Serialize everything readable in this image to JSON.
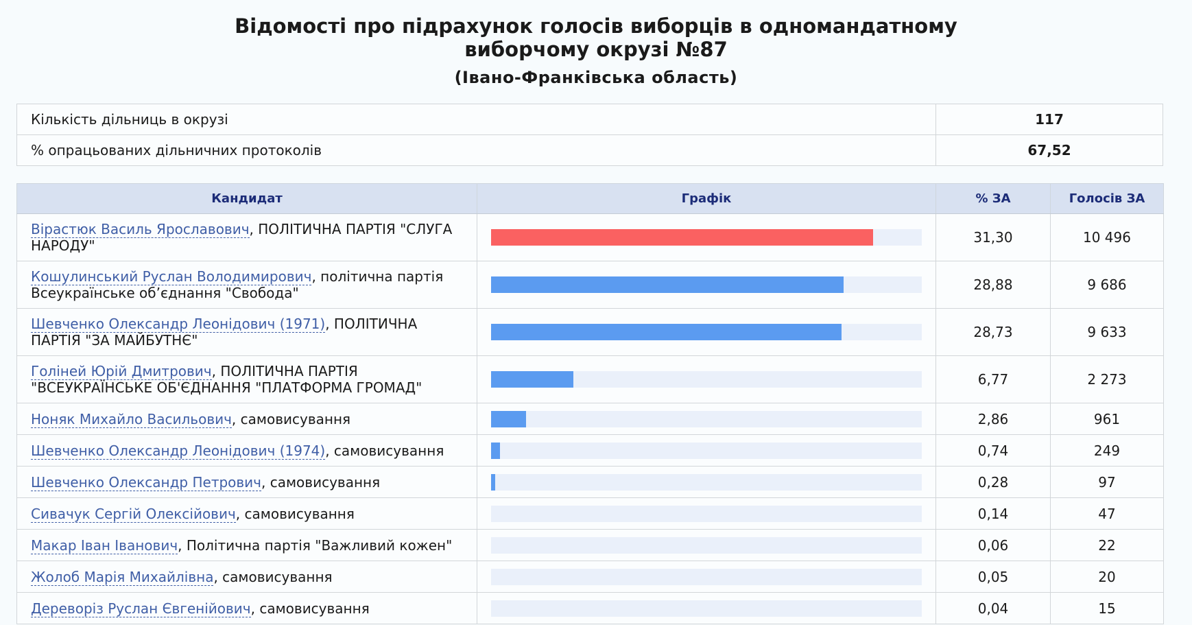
{
  "title": {
    "line1": "Відомості про підрахунок голосів виборців в одномандатному",
    "line2": "виборчому окрузі №87",
    "region": "(Івано-Франківська область)"
  },
  "summary": [
    {
      "label": "Кількість дільниць в окрузі",
      "value": "117"
    },
    {
      "label": "% опрацьованих дільничних протоколів",
      "value": "67,52"
    }
  ],
  "headers": {
    "candidate": "Кандидат",
    "chart": "Графік",
    "percent": "% ЗА",
    "votes": "Голосів ЗА"
  },
  "colors": {
    "leader_bar": "#fa6161",
    "bar": "#5b9bf0",
    "track": "#eaf0fa",
    "header_bg": "#d8e1f1",
    "header_text": "#1c2c78",
    "link": "#3f5ea6"
  },
  "chart_data": {
    "type": "bar",
    "xlim": [
      0,
      100
    ],
    "rows": [
      {
        "name": "Вірастюк Василь Ярославович",
        "party": ", ПОЛІТИЧНА ПАРТІЯ \"СЛУГА НАРОДУ\"",
        "percent": "31,30",
        "votes": "10 496",
        "value": 31.3,
        "lead": true
      },
      {
        "name": "Кошулинський Руслан Володимирович",
        "party": ", політична партія Всеукраїнське об’єднання \"Свобода\"",
        "percent": "28,88",
        "votes": "9 686",
        "value": 28.88,
        "lead": false
      },
      {
        "name": "Шевченко Олександр Леонідович (1971)",
        "party": ", ПОЛІТИЧНА ПАРТІЯ \"ЗА МАЙБУТНЄ\"",
        "percent": "28,73",
        "votes": "9 633",
        "value": 28.73,
        "lead": false
      },
      {
        "name": "Голіней Юрій Дмитрович",
        "party": ", ПОЛІТИЧНА ПАРТІЯ \"ВСЕУКРАЇНСЬКЕ ОБ'ЄДНАННЯ \"ПЛАТФОРМА ГРОМАД\"",
        "percent": "6,77",
        "votes": "2 273",
        "value": 6.77,
        "lead": false
      },
      {
        "name": "Ноняк Михайло Васильович",
        "party": ", самовисування",
        "percent": "2,86",
        "votes": "961",
        "value": 2.86,
        "lead": false
      },
      {
        "name": "Шевченко Олександр Леонідович (1974)",
        "party": ", самовисування",
        "percent": "0,74",
        "votes": "249",
        "value": 0.74,
        "lead": false
      },
      {
        "name": "Шевченко Олександр Петрович",
        "party": ", самовисування",
        "percent": "0,28",
        "votes": "97",
        "value": 0.28,
        "lead": false
      },
      {
        "name": "Сивачук Сергій Олексійович",
        "party": ", самовисування",
        "percent": "0,14",
        "votes": "47",
        "value": 0.14,
        "lead": false
      },
      {
        "name": "Макар Іван Іванович",
        "party": ", Політична партія \"Важливий кожен\"",
        "percent": "0,06",
        "votes": "22",
        "value": 0.06,
        "lead": false
      },
      {
        "name": "Жолоб Марія Михайлівна",
        "party": ", самовисування",
        "percent": "0,05",
        "votes": "20",
        "value": 0.05,
        "lead": false
      },
      {
        "name": "Дереворіз Руслан Євгенійович",
        "party": ", самовисування",
        "percent": "0,04",
        "votes": "15",
        "value": 0.04,
        "lead": false
      }
    ]
  }
}
